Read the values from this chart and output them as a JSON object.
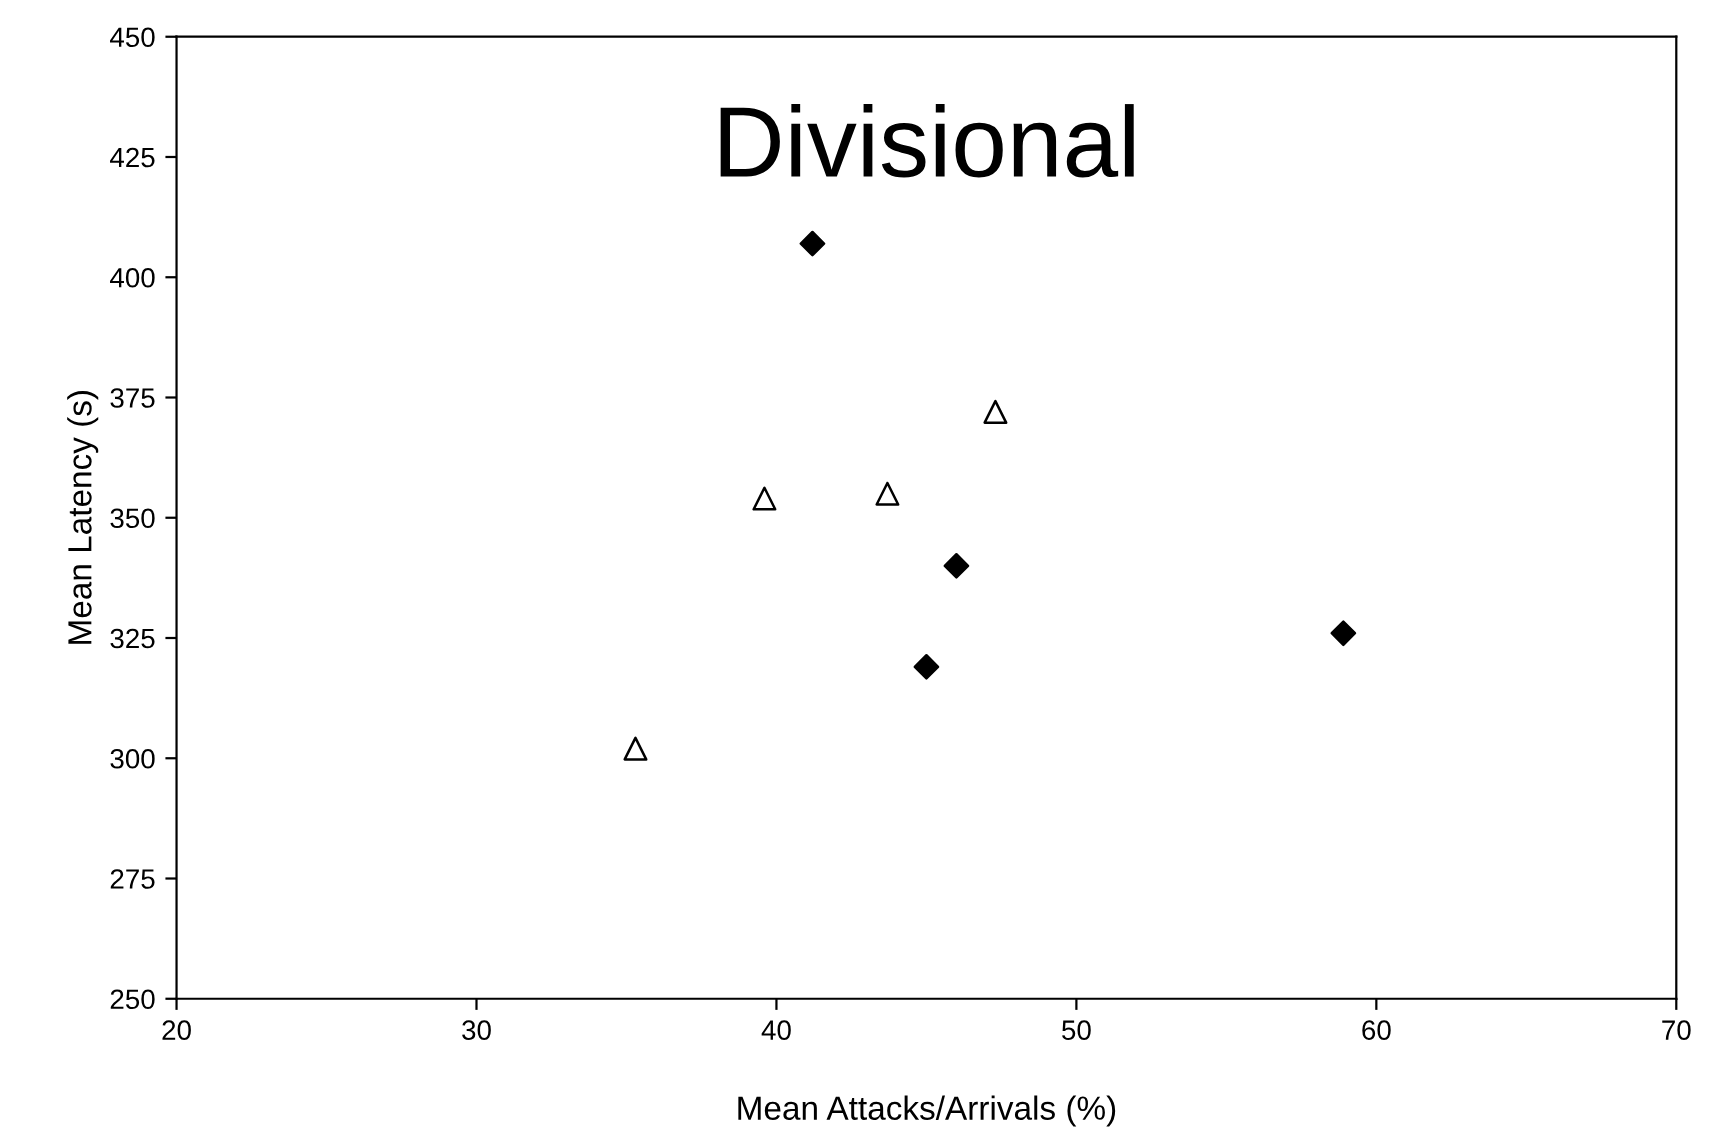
{
  "chart_data": {
    "type": "scatter",
    "title": "Divisional",
    "xlabel": "Mean Attacks/Arrivals (%)",
    "ylabel": "Mean Latency (s)",
    "xlim": [
      20,
      70
    ],
    "xticks": [
      20,
      30,
      40,
      50,
      60,
      70
    ],
    "ylim": [
      250,
      450
    ],
    "yticks": [
      250,
      275,
      300,
      325,
      350,
      375,
      400,
      425,
      450
    ],
    "grid": false,
    "series": [
      {
        "color": "#000000",
        "marker": "diamond",
        "x": [
          41.2,
          46.0,
          45.0,
          58.9
        ],
        "values": [
          407,
          340,
          319,
          326
        ]
      },
      {
        "color": "#ffffff",
        "marker": "triangle",
        "x": [
          35.3,
          39.6,
          43.7,
          47.3
        ],
        "values": [
          302,
          354,
          355,
          372
        ]
      }
    ]
  }
}
